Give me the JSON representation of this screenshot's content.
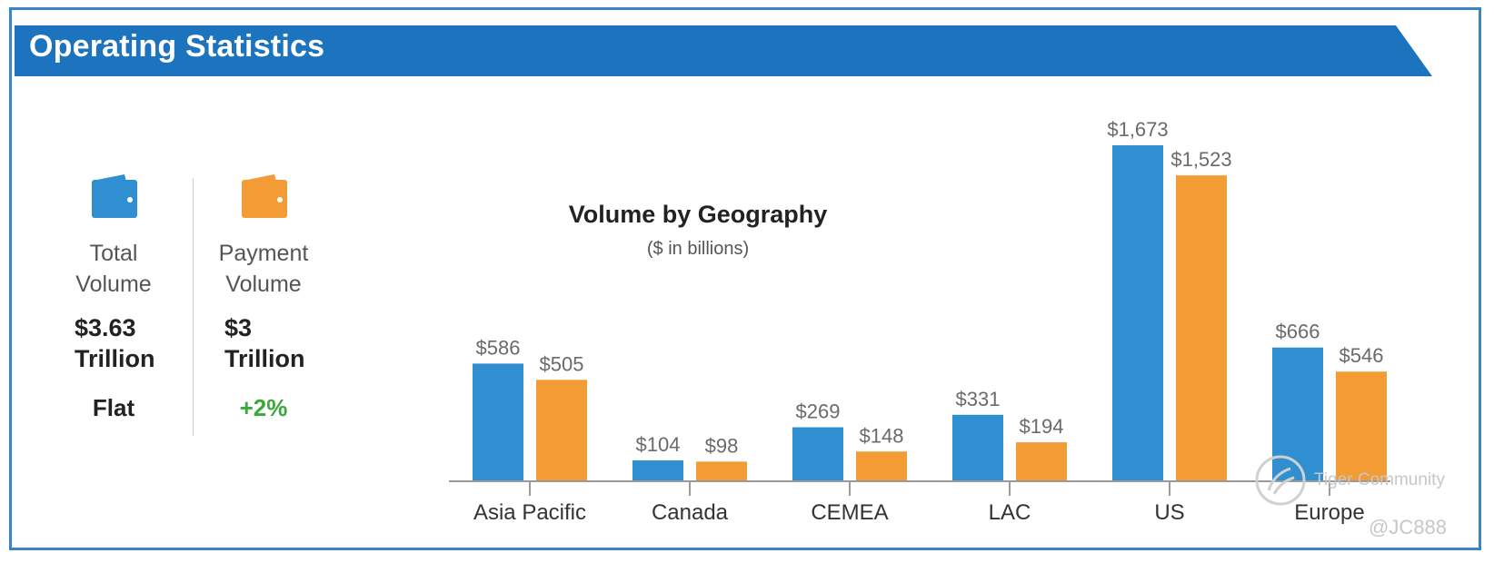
{
  "header": {
    "title": "Operating Statistics"
  },
  "stats": [
    {
      "label_line1": "Total",
      "label_line2": "Volume",
      "value_line1": "$3.63",
      "value_line2": "Trillion",
      "change": "Flat",
      "change_color": "#222222",
      "icon": "wallet-icon",
      "icon_color": "#2f8fd0"
    },
    {
      "label_line1": "Payment",
      "label_line2": "Volume",
      "value_line1": "$3",
      "value_line2": "Trillion",
      "change": "+2%",
      "change_color": "#3aa83a",
      "icon": "wallet-icon",
      "icon_color": "#f39b34"
    }
  ],
  "watermark": {
    "text": "Tiger Community",
    "handle": "@JC888"
  },
  "colors": {
    "brand_blue": "#1b74bd",
    "blue_bar": "#2f8fd0",
    "orange_bar": "#f39b34",
    "frame": "#3a86c4"
  },
  "chart_data": {
    "type": "bar",
    "title": "Volume by Geography",
    "subtitle": "($ in billions)",
    "categories": [
      "Asia Pacific",
      "Canada",
      "CEMEA",
      "LAC",
      "US",
      "Europe"
    ],
    "series": [
      {
        "name": "Total Volume",
        "color": "#2f8fd0",
        "values": [
          586,
          104,
          269,
          331,
          1673,
          666
        ],
        "labels": [
          "$586",
          "$104",
          "$269",
          "$331",
          "$1,673",
          "$666"
        ]
      },
      {
        "name": "Payment Volume",
        "color": "#f39b34",
        "values": [
          505,
          98,
          148,
          194,
          1523,
          546
        ],
        "labels": [
          "$505",
          "$98",
          "$148",
          "$194",
          "$1,523",
          "$546"
        ]
      }
    ],
    "ylim": [
      0,
      1673
    ],
    "xlabel": "",
    "ylabel": ""
  }
}
